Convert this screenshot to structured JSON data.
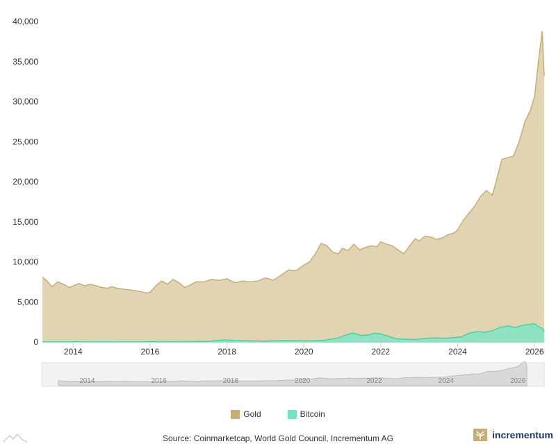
{
  "chart_data": {
    "type": "area",
    "title": "",
    "xlabel": "",
    "ylabel": "",
    "ylim": [
      0,
      40000
    ],
    "yticks": [
      "0",
      "5,000",
      "10,000",
      "15,000",
      "20,000",
      "25,000",
      "30,000",
      "35,000",
      "40,000"
    ],
    "xlim": [
      2013.2,
      2026.25
    ],
    "xticks": [
      "2014",
      "2016",
      "2018",
      "2020",
      "2022",
      "2024",
      "2026"
    ],
    "grid": false,
    "legend_position": "bottom",
    "series": [
      {
        "name": "Gold",
        "color": "#c8ad74",
        "fill": "#e1d4b3",
        "x": [
          2013.2,
          2013.3,
          2013.45,
          2013.6,
          2013.75,
          2013.9,
          2014.0,
          2014.15,
          2014.3,
          2014.45,
          2014.6,
          2014.75,
          2014.9,
          2015.0,
          2015.15,
          2015.3,
          2015.45,
          2015.6,
          2015.75,
          2015.9,
          2016.0,
          2016.15,
          2016.3,
          2016.45,
          2016.6,
          2016.75,
          2016.9,
          2017.0,
          2017.2,
          2017.4,
          2017.6,
          2017.8,
          2018.0,
          2018.2,
          2018.4,
          2018.6,
          2018.8,
          2019.0,
          2019.2,
          2019.4,
          2019.6,
          2019.8,
          2020.0,
          2020.15,
          2020.3,
          2020.45,
          2020.6,
          2020.75,
          2020.9,
          2021.0,
          2021.15,
          2021.3,
          2021.45,
          2021.6,
          2021.75,
          2021.9,
          2022.0,
          2022.15,
          2022.3,
          2022.45,
          2022.6,
          2022.75,
          2022.9,
          2023.0,
          2023.15,
          2023.3,
          2023.45,
          2023.6,
          2023.75,
          2023.9,
          2024.0,
          2024.15,
          2024.3,
          2024.45,
          2024.6,
          2024.75,
          2024.9,
          2025.0,
          2025.15,
          2025.3,
          2025.45,
          2025.6,
          2025.75,
          2025.9,
          2026.0,
          2026.1,
          2026.2,
          2026.25
        ],
        "y": [
          8100,
          7700,
          6900,
          7500,
          7200,
          6800,
          7000,
          7300,
          7000,
          7200,
          7000,
          6800,
          6700,
          6900,
          6700,
          6600,
          6500,
          6400,
          6300,
          6100,
          6200,
          7000,
          7600,
          7200,
          7800,
          7400,
          6800,
          7000,
          7500,
          7500,
          7800,
          7700,
          7900,
          7400,
          7600,
          7500,
          7600,
          8000,
          7700,
          8300,
          9000,
          8900,
          9600,
          10000,
          11000,
          12300,
          12000,
          11200,
          11000,
          11700,
          11400,
          12200,
          11500,
          11800,
          12000,
          11900,
          12500,
          12200,
          12000,
          11500,
          11000,
          12000,
          12900,
          12600,
          13200,
          13100,
          12800,
          13000,
          13400,
          13600,
          14000,
          15200,
          16100,
          17000,
          18200,
          18900,
          18300,
          20000,
          22800,
          23000,
          23200,
          25000,
          27500,
          29000,
          30700,
          35000,
          38800,
          33200
        ]
      },
      {
        "name": "Bitcoin",
        "color": "#3ed6a5",
        "fill": "#8fe3c2",
        "x": [
          2013.2,
          2014.0,
          2015.0,
          2016.0,
          2017.0,
          2017.5,
          2017.9,
          2018.1,
          2018.5,
          2019.0,
          2019.5,
          2020.0,
          2020.5,
          2020.9,
          2021.1,
          2021.3,
          2021.5,
          2021.7,
          2021.85,
          2022.0,
          2022.2,
          2022.4,
          2022.6,
          2022.9,
          2023.1,
          2023.3,
          2023.5,
          2023.7,
          2023.9,
          2024.1,
          2024.3,
          2024.5,
          2024.7,
          2024.9,
          2025.1,
          2025.3,
          2025.5,
          2025.7,
          2025.9,
          2026.0,
          2026.1,
          2026.2,
          2026.25
        ],
        "y": [
          10,
          15,
          10,
          15,
          40,
          80,
          250,
          220,
          150,
          100,
          180,
          140,
          200,
          500,
          900,
          1100,
          800,
          900,
          1100,
          1000,
          700,
          400,
          350,
          300,
          400,
          500,
          500,
          450,
          550,
          650,
          1100,
          1300,
          1200,
          1400,
          1800,
          2000,
          1800,
          2100,
          2200,
          2300,
          1900,
          1700,
          1300
        ]
      }
    ]
  },
  "legend": {
    "gold_label": "Gold",
    "bitcoin_label": "Bitcoin"
  },
  "navigator": {
    "ticks": [
      "2014",
      "2016",
      "2018",
      "2020",
      "2022",
      "2024",
      "2026"
    ]
  },
  "footer": {
    "source": "Source: Coinmarketcap, World Gold Council, Incrementum AG",
    "brand": "incrementum"
  },
  "colors": {
    "gold": "#c8ad74",
    "bitcoin": "#3ed6a5",
    "brand": "#1f3b6e"
  }
}
